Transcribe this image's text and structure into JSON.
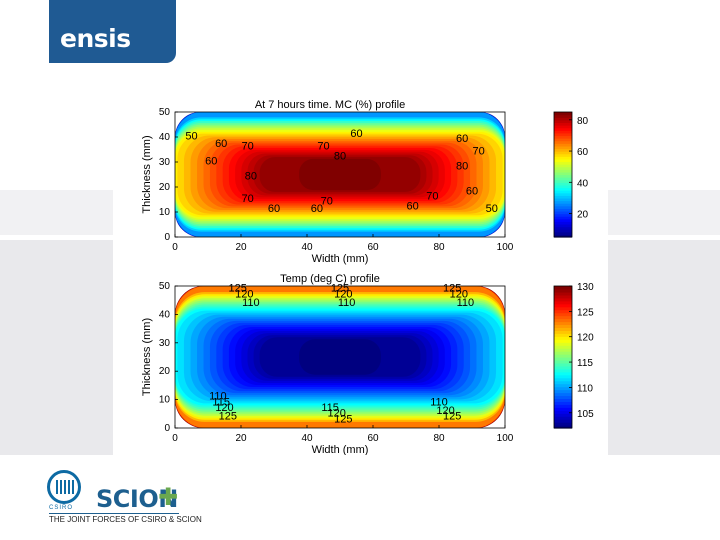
{
  "header": {
    "logo_text": "ensis"
  },
  "footer": {
    "csiro_label": "CSIRO",
    "scion_label": "SCION",
    "scion_plus": "✚",
    "tagline": "THE JOINT FORCES OF CSIRO & SCION"
  },
  "chart_data": [
    {
      "type": "heatmap",
      "title": "At 7 hours time. MC (%) profile",
      "xlabel": "Width (mm)",
      "ylabel": "Thickness (mm)",
      "xlim": [
        0,
        100
      ],
      "ylim": [
        0,
        50
      ],
      "xticks": [
        0,
        20,
        40,
        60,
        80,
        100
      ],
      "yticks": [
        0,
        10,
        20,
        30,
        40,
        50
      ],
      "colorbar_ticks": [
        20,
        40,
        60,
        80
      ],
      "zlim": [
        5,
        85
      ],
      "colormap": "jet",
      "contour_levels": [
        50,
        60,
        70,
        80
      ],
      "core_value": 85,
      "surface_value": 8,
      "contour_labels": [
        {
          "text": "50",
          "x": 5,
          "y": 39
        },
        {
          "text": "60",
          "x": 14,
          "y": 36
        },
        {
          "text": "70",
          "x": 22,
          "y": 35
        },
        {
          "text": "60",
          "x": 11,
          "y": 29
        },
        {
          "text": "80",
          "x": 23,
          "y": 23
        },
        {
          "text": "60",
          "x": 55,
          "y": 40
        },
        {
          "text": "70",
          "x": 45,
          "y": 35
        },
        {
          "text": "80",
          "x": 50,
          "y": 31
        },
        {
          "text": "70",
          "x": 46,
          "y": 13
        },
        {
          "text": "60",
          "x": 43,
          "y": 10
        },
        {
          "text": "60",
          "x": 87,
          "y": 38
        },
        {
          "text": "70",
          "x": 92,
          "y": 33
        },
        {
          "text": "80",
          "x": 87,
          "y": 27
        },
        {
          "text": "60",
          "x": 90,
          "y": 17
        },
        {
          "text": "50",
          "x": 96,
          "y": 10
        },
        {
          "text": "60",
          "x": 30,
          "y": 10
        },
        {
          "text": "70",
          "x": 22,
          "y": 14
        },
        {
          "text": "60",
          "x": 72,
          "y": 11
        },
        {
          "text": "70",
          "x": 78,
          "y": 15
        }
      ]
    },
    {
      "type": "heatmap",
      "title": "Temp (deg C) profile",
      "xlabel": "Width (mm)",
      "ylabel": "Thickness (mm)",
      "xlim": [
        0,
        100
      ],
      "ylim": [
        0,
        50
      ],
      "xticks": [
        0,
        20,
        40,
        60,
        80,
        100
      ],
      "yticks": [
        0,
        10,
        20,
        30,
        40,
        50
      ],
      "colorbar_ticks": [
        105,
        110,
        115,
        120,
        125,
        130
      ],
      "zlim": [
        102,
        130
      ],
      "colormap": "jet",
      "contour_levels": [
        110,
        115,
        120,
        125
      ],
      "core_value": 102,
      "surface_value": 130,
      "contour_labels": [
        {
          "text": "125",
          "x": 19,
          "y": 48
        },
        {
          "text": "120",
          "x": 21,
          "y": 46
        },
        {
          "text": "110",
          "x": 23,
          "y": 43
        },
        {
          "text": "125",
          "x": 50,
          "y": 48
        },
        {
          "text": "120",
          "x": 51,
          "y": 46
        },
        {
          "text": "110",
          "x": 52,
          "y": 43
        },
        {
          "text": "125",
          "x": 84,
          "y": 48
        },
        {
          "text": "120",
          "x": 86,
          "y": 46
        },
        {
          "text": "110",
          "x": 88,
          "y": 43
        },
        {
          "text": "110",
          "x": 13,
          "y": 10
        },
        {
          "text": "115",
          "x": 14,
          "y": 8
        },
        {
          "text": "120",
          "x": 15,
          "y": 6
        },
        {
          "text": "125",
          "x": 16,
          "y": 3
        },
        {
          "text": "115",
          "x": 47,
          "y": 6
        },
        {
          "text": "120",
          "x": 49,
          "y": 4
        },
        {
          "text": "125",
          "x": 51,
          "y": 2
        },
        {
          "text": "110",
          "x": 80,
          "y": 8
        },
        {
          "text": "120",
          "x": 82,
          "y": 5
        },
        {
          "text": "125",
          "x": 84,
          "y": 3
        }
      ]
    }
  ]
}
